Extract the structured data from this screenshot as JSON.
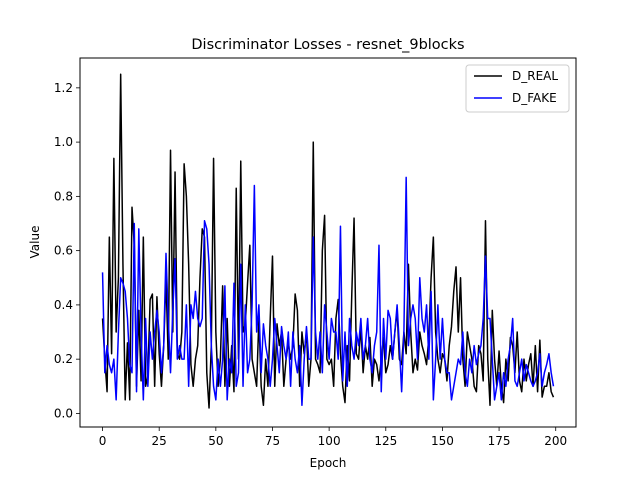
{
  "chart_data": {
    "type": "line",
    "title": "Discriminator Losses - resnet_9blocks",
    "xlabel": "Epoch",
    "ylabel": "Value",
    "xlim": [
      -9.95,
      208.95
    ],
    "ylim": [
      -0.05,
      1.31
    ],
    "xticks": [
      0,
      25,
      50,
      75,
      100,
      125,
      150,
      175,
      200
    ],
    "yticks": [
      0.0,
      0.2,
      0.4,
      0.6,
      0.8,
      1.0,
      1.2
    ],
    "ytick_labels": [
      "0.0",
      "0.2",
      "0.4",
      "0.6",
      "0.8",
      "1.0",
      "1.2"
    ],
    "grid": false,
    "legend": "top-right",
    "colors": {
      "D_REAL": "#000000",
      "D_FAKE": "#0000ff"
    },
    "series": [
      {
        "name": "D_REAL",
        "color": "#000000",
        "x": [
          0,
          1,
          2,
          3,
          4,
          5,
          6,
          7,
          8,
          9,
          10,
          11,
          12,
          13,
          14,
          15,
          16,
          17,
          18,
          19,
          20,
          21,
          22,
          23,
          24,
          25,
          26,
          27,
          28,
          29,
          30,
          31,
          32,
          33,
          34,
          35,
          36,
          37,
          38,
          39,
          40,
          41,
          42,
          43,
          44,
          45,
          46,
          47,
          48,
          49,
          50,
          51,
          52,
          53,
          54,
          55,
          56,
          57,
          58,
          59,
          60,
          61,
          62,
          63,
          64,
          65,
          66,
          67,
          68,
          69,
          70,
          71,
          72,
          73,
          74,
          75,
          76,
          77,
          78,
          79,
          80,
          81,
          82,
          83,
          84,
          85,
          86,
          87,
          88,
          89,
          90,
          91,
          92,
          93,
          94,
          95,
          96,
          97,
          98,
          99,
          100,
          101,
          102,
          103,
          104,
          105,
          106,
          107,
          108,
          109,
          110,
          111,
          112,
          113,
          114,
          115,
          116,
          117,
          118,
          119,
          120,
          121,
          122,
          123,
          124,
          125,
          126,
          127,
          128,
          129,
          130,
          131,
          132,
          133,
          134,
          135,
          136,
          137,
          138,
          139,
          140,
          141,
          142,
          143,
          144,
          145,
          146,
          147,
          148,
          149,
          150,
          151,
          152,
          153,
          154,
          155,
          156,
          157,
          158,
          159,
          160,
          161,
          162,
          163,
          164,
          165,
          166,
          167,
          168,
          169,
          170,
          171,
          172,
          173,
          174,
          175,
          176,
          177,
          178,
          179,
          180,
          181,
          182,
          183,
          184,
          185,
          186,
          187,
          188,
          189,
          190,
          191,
          192,
          193,
          194,
          195,
          196,
          197,
          198,
          199
        ],
        "y": [
          0.35,
          0.2,
          0.08,
          0.65,
          0.22,
          0.94,
          0.3,
          0.5,
          1.25,
          0.55,
          0.05,
          0.26,
          0.05,
          0.76,
          0.62,
          0.1,
          0.38,
          0.12,
          0.65,
          0.1,
          0.14,
          0.42,
          0.44,
          0.1,
          0.43,
          0.22,
          0.1,
          0.25,
          0.5,
          0.2,
          0.97,
          0.3,
          0.89,
          0.22,
          0.2,
          0.3,
          0.92,
          0.8,
          0.55,
          0.18,
          0.1,
          0.2,
          0.25,
          0.5,
          0.68,
          0.65,
          0.15,
          0.02,
          0.25,
          0.94,
          0.3,
          0.1,
          0.2,
          0.47,
          0.1,
          0.35,
          0.1,
          0.25,
          0.08,
          0.83,
          0.2,
          0.93,
          0.3,
          0.33,
          0.48,
          0.62,
          0.2,
          0.15,
          0.1,
          0.35,
          0.1,
          0.03,
          0.2,
          0.1,
          0.35,
          0.58,
          0.1,
          0.33,
          0.25,
          0.3,
          0.1,
          0.2,
          0.26,
          0.2,
          0.25,
          0.44,
          0.38,
          0.1,
          0.3,
          0.22,
          0.3,
          0.1,
          0.2,
          1.0,
          0.2,
          0.18,
          0.15,
          0.6,
          0.73,
          0.2,
          0.18,
          0.2,
          0.1,
          0.35,
          0.42,
          0.22,
          0.1,
          0.04,
          0.25,
          0.12,
          0.44,
          0.72,
          0.22,
          0.2,
          0.32,
          0.15,
          0.25,
          0.2,
          0.28,
          0.1,
          0.2,
          0.18,
          0.12,
          0.2,
          0.28,
          0.15,
          0.18,
          0.25,
          0.2,
          0.3,
          0.38,
          0.2,
          0.18,
          0.3,
          0.22,
          0.55,
          0.3,
          0.15,
          0.2,
          0.16,
          0.3,
          0.25,
          0.22,
          0.18,
          0.28,
          0.5,
          0.65,
          0.3,
          0.2,
          0.15,
          0.22,
          0.2,
          0.12,
          0.25,
          0.32,
          0.45,
          0.54,
          0.3,
          0.5,
          0.2,
          0.1,
          0.3,
          0.25,
          0.2,
          0.1,
          0.08,
          0.25,
          0.22,
          0.12,
          0.71,
          0.2,
          0.03,
          0.38,
          0.2,
          0.1,
          0.23,
          0.1,
          0.04,
          0.2,
          0.12,
          0.28,
          0.25,
          0.15,
          0.3,
          0.12,
          0.08,
          0.2,
          0.12,
          0.18,
          0.22,
          0.1,
          0.25,
          0.08,
          0.27,
          0.06,
          0.1,
          0.1,
          0.15,
          0.08,
          0.06
        ]
      },
      {
        "name": "D_FAKE",
        "color": "#0000ff",
        "x": [
          0,
          1,
          2,
          3,
          4,
          5,
          6,
          7,
          8,
          9,
          10,
          11,
          12,
          13,
          14,
          15,
          16,
          17,
          18,
          19,
          20,
          21,
          22,
          23,
          24,
          25,
          26,
          27,
          28,
          29,
          30,
          31,
          32,
          33,
          34,
          35,
          36,
          37,
          38,
          39,
          40,
          41,
          42,
          43,
          44,
          45,
          46,
          47,
          48,
          49,
          50,
          51,
          52,
          53,
          54,
          55,
          56,
          57,
          58,
          59,
          60,
          61,
          62,
          63,
          64,
          65,
          66,
          67,
          68,
          69,
          70,
          71,
          72,
          73,
          74,
          75,
          76,
          77,
          78,
          79,
          80,
          81,
          82,
          83,
          84,
          85,
          86,
          87,
          88,
          89,
          90,
          91,
          92,
          93,
          94,
          95,
          96,
          97,
          98,
          99,
          100,
          101,
          102,
          103,
          104,
          105,
          106,
          107,
          108,
          109,
          110,
          111,
          112,
          113,
          114,
          115,
          116,
          117,
          118,
          119,
          120,
          121,
          122,
          123,
          124,
          125,
          126,
          127,
          128,
          129,
          130,
          131,
          132,
          133,
          134,
          135,
          136,
          137,
          138,
          139,
          140,
          141,
          142,
          143,
          144,
          145,
          146,
          147,
          148,
          149,
          150,
          151,
          152,
          153,
          154,
          155,
          156,
          157,
          158,
          159,
          160,
          161,
          162,
          163,
          164,
          165,
          166,
          167,
          168,
          169,
          170,
          171,
          172,
          173,
          174,
          175,
          176,
          177,
          178,
          179,
          180,
          181,
          182,
          183,
          184,
          185,
          186,
          187,
          188,
          189,
          190,
          191,
          192,
          193,
          194,
          195,
          196,
          197,
          198,
          199
        ],
        "y": [
          0.52,
          0.15,
          0.25,
          0.18,
          0.15,
          0.2,
          0.05,
          0.3,
          0.5,
          0.48,
          0.45,
          0.35,
          0.18,
          0.15,
          0.7,
          0.08,
          0.68,
          0.3,
          0.05,
          0.35,
          0.1,
          0.3,
          0.2,
          0.3,
          0.38,
          0.3,
          0.15,
          0.25,
          0.59,
          0.35,
          0.15,
          0.38,
          0.57,
          0.2,
          0.25,
          0.2,
          0.2,
          0.4,
          0.1,
          0.4,
          0.35,
          0.45,
          0.35,
          0.32,
          0.35,
          0.71,
          0.68,
          0.55,
          0.25,
          0.1,
          0.05,
          0.2,
          0.1,
          0.2,
          0.47,
          0.05,
          0.2,
          0.15,
          0.48,
          0.1,
          0.15,
          0.55,
          0.1,
          0.4,
          0.15,
          0.2,
          0.4,
          0.84,
          0.3,
          0.4,
          0.15,
          0.33,
          0.25,
          0.2,
          0.1,
          0.2,
          0.35,
          0.25,
          0.15,
          0.32,
          0.25,
          0.2,
          0.3,
          0.1,
          0.3,
          0.2,
          0.15,
          0.25,
          0.03,
          0.2,
          0.32,
          0.2,
          0.2,
          0.65,
          0.3,
          0.2,
          0.3,
          0.15,
          0.4,
          0.3,
          0.2,
          0.35,
          0.3,
          0.3,
          0.2,
          0.69,
          0.12,
          0.3,
          0.1,
          0.35,
          0.25,
          0.2,
          0.3,
          0.25,
          0.35,
          0.2,
          0.25,
          0.35,
          0.2,
          0.15,
          0.25,
          0.3,
          0.62,
          0.08,
          0.35,
          0.2,
          0.38,
          0.35,
          0.2,
          0.3,
          0.4,
          0.25,
          0.08,
          0.3,
          0.87,
          0.25,
          0.35,
          0.4,
          0.35,
          0.2,
          0.5,
          0.35,
          0.3,
          0.4,
          0.2,
          0.45,
          0.05,
          0.2,
          0.4,
          0.2,
          0.35,
          0.2,
          0.15,
          0.15,
          0.05,
          0.1,
          0.15,
          0.2,
          0.18,
          0.3,
          0.15,
          0.1,
          0.2,
          0.15,
          0.25,
          0.18,
          0.22,
          0.25,
          0.35,
          0.58,
          0.35,
          0.35,
          0.2,
          0.05,
          0.1,
          0.15,
          0.05,
          0.15,
          0.1,
          0.2,
          0.25,
          0.35,
          0.12,
          0.1,
          0.15,
          0.2,
          0.12,
          0.18,
          0.15,
          0.12,
          0.1,
          0.12,
          0.15,
          0.22,
          0.1,
          0.15,
          0.18,
          0.22,
          0.15,
          0.1
        ]
      }
    ]
  }
}
